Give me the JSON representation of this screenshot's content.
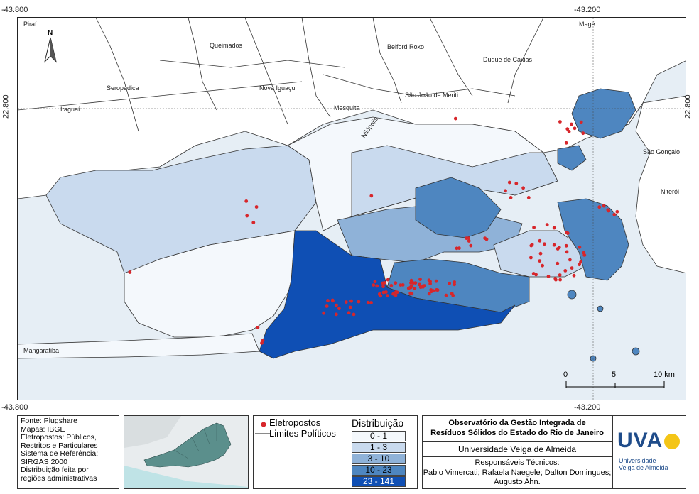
{
  "coordinates": {
    "top_left": "-43.800",
    "top_right": "-43.200",
    "bottom_left": "-43.800",
    "bottom_right": "-43.200",
    "left_lat": "-22.800",
    "right_lat": "-22.800"
  },
  "north_arrow": "N",
  "place_labels": {
    "pirai": "Piraí",
    "mage": "Magé",
    "queimados": "Queimados",
    "belford_roxo": "Belford Roxo",
    "duque_de_caxias": "Duque de Caxias",
    "seropedica": "Seropédica",
    "nova_iguacu": "Nova Iguaçu",
    "sao_joao_de_meriti": "São João de Meriti",
    "mesquita": "Mesquita",
    "itaguai": "Itaguaí",
    "nilopolis": "Nilópolis",
    "sao_goncalo": "São Gonçalo",
    "niteroi": "Niterói",
    "mangaratiba": "Mangaratiba"
  },
  "scale_bar": {
    "zero": "0",
    "mid": "5",
    "end": "10 km"
  },
  "sources": [
    "Fonte: Plugshare",
    "Mapas: IBGE",
    "Eletropostos: Públicos,",
    "Restritos e Particulares",
    "Sistema de Referência:",
    "SIRGAS 2000",
    "Distribuição feita por",
    "regiões administrativas"
  ],
  "legend": {
    "points_label": "Eletropostos",
    "lines_label": "Limites Políticos",
    "title": "Distribuição",
    "classes": [
      {
        "label": "0 - 1",
        "color": "#f4f8fc"
      },
      {
        "label": "1 - 3",
        "color": "#c9daee"
      },
      {
        "label": "3 - 10",
        "color": "#8fb2d8"
      },
      {
        "label": "10 - 23",
        "color": "#4e86c0"
      },
      {
        "label": "23 - 141",
        "color": "#0f4fb4"
      }
    ],
    "point_color": "#d7262b"
  },
  "credits": {
    "title_line1": "Observatório da Gestão Integrada de",
    "title_line2": "Resíduos Sólidos do Estado do Rio de Janeiro",
    "university": "Universidade Veiga de Almeida",
    "responsible_title": "Responsáveis Técnicos:",
    "names_line1": "Pablo Vimercati; Rafaela Naegele; Dalton Domingues;",
    "names_line2": "Augusto Ahn."
  },
  "logo": {
    "name": "UVA",
    "sub_line1": "Universidade",
    "sub_line2": "Veiga de Almeida"
  }
}
